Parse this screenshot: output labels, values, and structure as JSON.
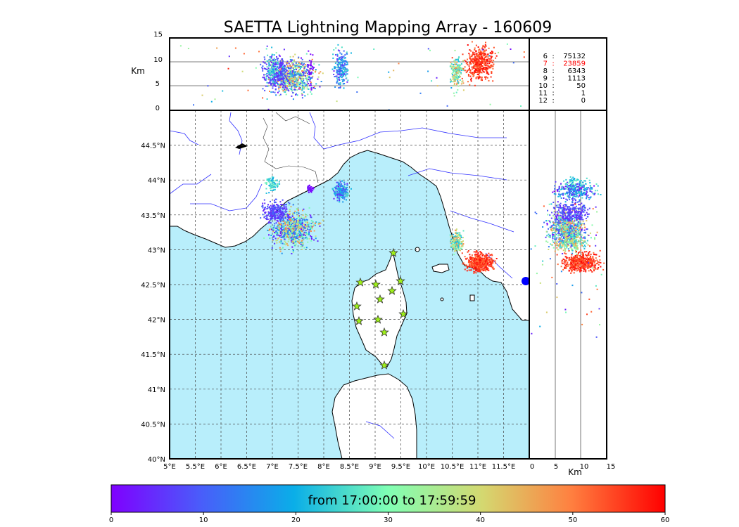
{
  "title": "SAETTA Lightning Mapping Array - 160609",
  "altitude_panel": {
    "ylabel": "Km",
    "yticks": [
      "15",
      "10",
      "5",
      "0"
    ]
  },
  "side_panel": {
    "xlabel": "Km",
    "xticks": [
      "0",
      "5",
      "10",
      "15"
    ]
  },
  "station_counts": [
    {
      "stations": "6",
      "count": "75132",
      "color": "#000000"
    },
    {
      "stations": "7",
      "count": "23859",
      "color": "#ff0000"
    },
    {
      "stations": "8",
      "count": "6343",
      "color": "#000000"
    },
    {
      "stations": "9",
      "count": "1113",
      "color": "#000000"
    },
    {
      "stations": "10",
      "count": "50",
      "color": "#000000"
    },
    {
      "stations": "11",
      "count": "1",
      "color": "#000000"
    },
    {
      "stations": "12",
      "count": "0",
      "color": "#000000"
    }
  ],
  "map": {
    "lon_ticks": [
      "5°E",
      "5.5°E",
      "6°E",
      "6.5°E",
      "7°E",
      "7.5°E",
      "8°E",
      "8.5°E",
      "9°E",
      "9.5°E",
      "10°E",
      "10.5°E",
      "11°E",
      "11.5°E"
    ],
    "lat_ticks": [
      "40°N",
      "40.5°N",
      "41°N",
      "41.5°N",
      "42°N",
      "42.5°N",
      "43°N",
      "43.5°N",
      "44°N",
      "44.5°N"
    ],
    "lon_range": [
      5,
      12
    ],
    "lat_range": [
      40,
      45
    ],
    "sea_color": "#b8eefb",
    "land_color": "#ffffff",
    "station_color": "#9ef01a"
  },
  "colorbar": {
    "label": "from 17:00:00 to 17:59:59",
    "ticks": [
      "0",
      "10",
      "20",
      "30",
      "40",
      "50",
      "60"
    ],
    "range": [
      0,
      60
    ],
    "colormap": "rainbow"
  }
}
